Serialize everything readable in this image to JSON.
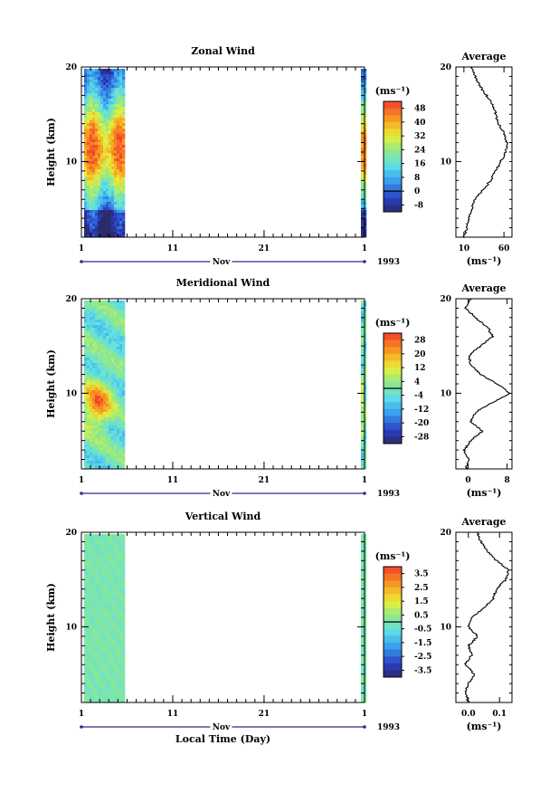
{
  "chart_data": [
    {
      "type": "heatmap",
      "title": "Zonal Wind",
      "ylabel": "Height (km)",
      "y_ticks": [
        "20",
        "10"
      ],
      "ylim": [
        2,
        20
      ],
      "x_ticks": [
        "1",
        "11",
        "21",
        "1"
      ],
      "x_month": "Nov",
      "year": "1993",
      "colorbar_unit": "(ms⁻¹)",
      "colorbar_labels": [
        "48",
        "40",
        "32",
        "24",
        "16",
        "8",
        "0",
        "-8"
      ],
      "colorbar_range": [
        -12,
        52
      ],
      "data_coverage_days": [
        [
          1.3,
          5.6
        ],
        [
          31.6,
          31.9
        ]
      ],
      "average_profile": {
        "title": "Average",
        "x_ticks": [
          "10",
          "60"
        ],
        "xlim": [
          0,
          70
        ],
        "xlabel": "(ms⁻¹)",
        "heights": [
          2,
          3,
          4,
          5,
          6,
          7,
          8,
          9,
          10,
          11,
          12,
          13,
          14,
          15,
          16,
          17,
          18,
          19,
          20
        ],
        "values": [
          10,
          14,
          16,
          20,
          24,
          34,
          43,
          50,
          56,
          62,
          64,
          60,
          53,
          50,
          46,
          38,
          30,
          24,
          20
        ]
      }
    },
    {
      "type": "heatmap",
      "title": "Meridional Wind",
      "ylabel": "Height (km)",
      "y_ticks": [
        "20",
        "10"
      ],
      "ylim": [
        2,
        20
      ],
      "x_ticks": [
        "1",
        "11",
        "21",
        "1"
      ],
      "x_month": "Nov",
      "year": "1993",
      "colorbar_unit": "(ms⁻¹)",
      "colorbar_labels": [
        "28",
        "20",
        "12",
        "4",
        "-4",
        "-12",
        "-20",
        "-28"
      ],
      "colorbar_range": [
        -32,
        32
      ],
      "data_coverage_days": [
        [
          1.3,
          5.6
        ],
        [
          31.6,
          31.9
        ]
      ],
      "average_profile": {
        "title": "Average",
        "x_ticks": [
          "0",
          "8"
        ],
        "xlim": [
          -2.5,
          9
        ],
        "xlabel": "(ms⁻¹)",
        "heights": [
          2,
          3,
          4,
          5,
          6,
          7,
          8,
          9,
          10,
          11,
          12,
          13,
          14,
          15,
          16,
          17,
          18,
          19,
          20
        ],
        "values": [
          -0.5,
          0.2,
          -0.8,
          0.5,
          3.0,
          0.5,
          1.5,
          5.0,
          8.5,
          6.0,
          2.5,
          0.5,
          0.2,
          2.5,
          5.0,
          4.0,
          1.5,
          -0.5,
          0.5
        ]
      }
    },
    {
      "type": "heatmap",
      "title": "Vertical Wind",
      "ylabel": "Height (km)",
      "y_ticks": [
        "20",
        "10"
      ],
      "ylim": [
        2,
        20
      ],
      "x_ticks": [
        "1",
        "11",
        "21",
        "1"
      ],
      "x_month": "Nov",
      "year": "1993",
      "xlabel": "Local Time (Day)",
      "colorbar_unit": "(ms⁻¹)",
      "colorbar_labels": [
        "3.5",
        "2.5",
        "1.5",
        "0.5",
        "-0.5",
        "-1.5",
        "-2.5",
        "-3.5"
      ],
      "colorbar_range": [
        -4,
        4
      ],
      "data_coverage_days": [
        [
          1.3,
          5.6
        ],
        [
          31.6,
          31.9
        ]
      ],
      "average_profile": {
        "title": "Average",
        "x_ticks": [
          "0.0",
          "0.1"
        ],
        "xlim": [
          -0.04,
          0.14
        ],
        "xlabel": "(ms⁻¹)",
        "heights": [
          2,
          3,
          4,
          5,
          6,
          7,
          8,
          9,
          10,
          11,
          12,
          13,
          14,
          15,
          16,
          17,
          18,
          19,
          20
        ],
        "values": [
          0.0,
          -0.01,
          0.0,
          0.02,
          -0.01,
          0.01,
          0.0,
          0.03,
          0.0,
          0.01,
          0.05,
          0.08,
          0.09,
          0.12,
          0.13,
          0.09,
          0.06,
          0.04,
          0.03
        ]
      }
    }
  ]
}
